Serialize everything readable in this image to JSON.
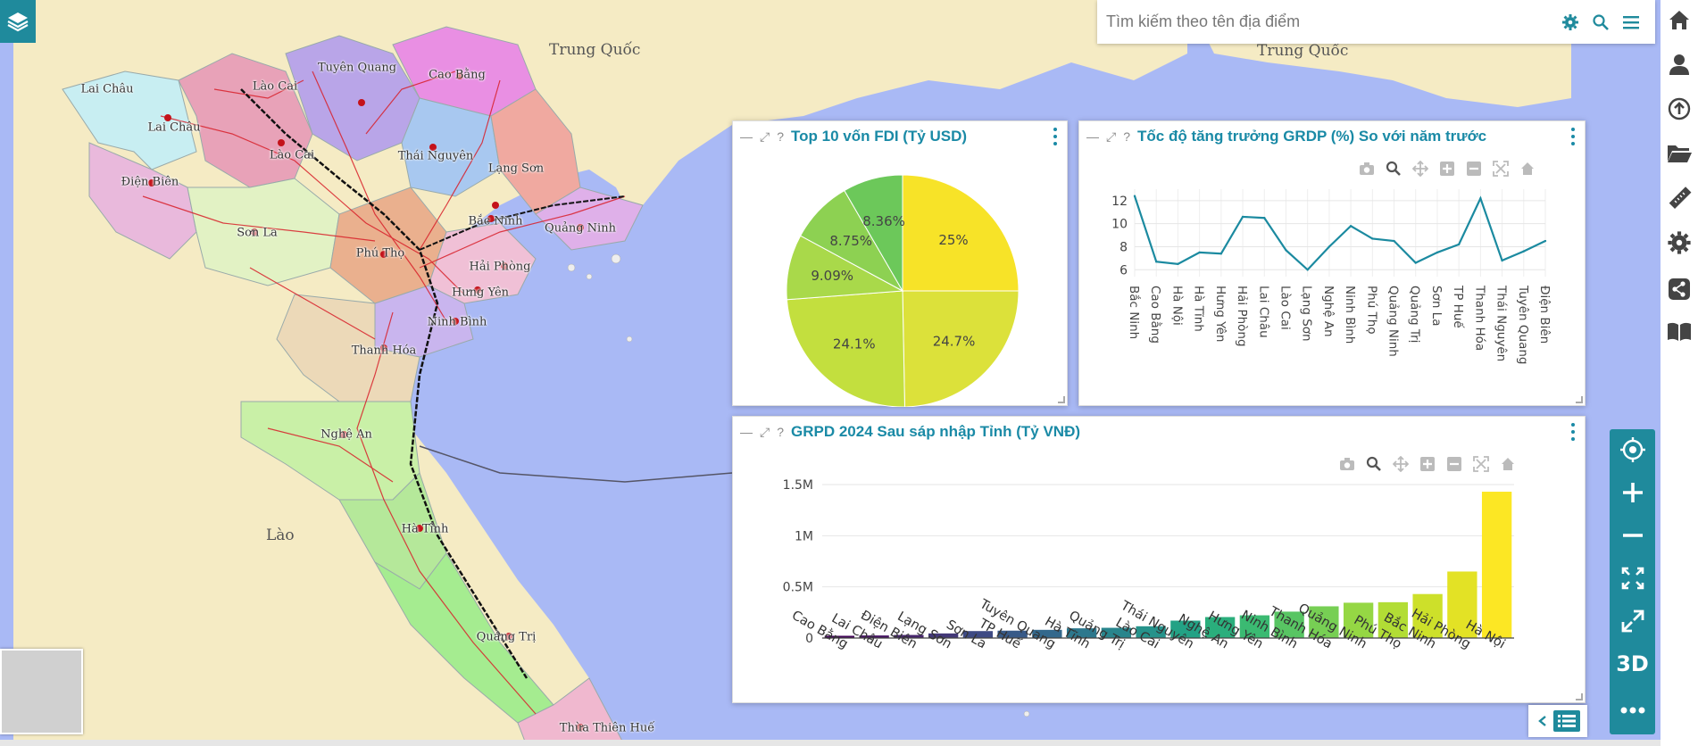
{
  "map": {
    "countries": [
      "Trung Quốc",
      "Trung Quốc",
      "Lào"
    ],
    "places": [
      "Lai Châu",
      "Lào Cai",
      "Tuyên Quang",
      "Cao Bằng",
      "Lai Châu",
      "Lào Cai",
      "Thái Nguyên",
      "Lạng Sơn",
      "Điện Biên",
      "Sơn La",
      "Phú Thọ",
      "Bắc Ninh",
      "Quảng Ninh",
      "Hải Phòng",
      "Hưng Yên",
      "Ninh Bình",
      "Thanh Hóa",
      "Nghệ An",
      "Hà Tĩnh",
      "Quảng Trị",
      "Thừa Thiên Huế"
    ]
  },
  "search": {
    "placeholder": "Tìm kiếm theo tên địa điểm"
  },
  "icons": {
    "layers": "layers-icon",
    "search_settings": "gear-icon",
    "search": "search-icon",
    "menu": "hamburger-icon",
    "toolbar": [
      "home-icon",
      "user-icon",
      "upload-icon",
      "folder-icon",
      "ruler-icon",
      "gear-icon",
      "share-icon",
      "book-icon"
    ],
    "zoom": [
      "locate-icon",
      "zoom-in-icon",
      "zoom-out-icon",
      "extent-icon",
      "fullscreen-icon"
    ]
  },
  "zoom_controls": {
    "three_d": "3D"
  },
  "colors": {
    "accent": "#1f8a9c",
    "title": "#1a8aa6",
    "line": "#1b8aa0"
  },
  "panels": {
    "pie": {
      "title": "Top 10 vốn FDI (Tỷ USD)"
    },
    "line": {
      "title": "Tốc độ tăng trưởng GRDP (%) So với năm trước"
    },
    "bar": {
      "title": "GRPD 2024 Sau sáp nhập Tỉnh (Tỷ VNĐ)"
    }
  },
  "chart_data": [
    {
      "type": "pie",
      "title": "Top 10 vốn FDI (Tỷ USD)",
      "slices": [
        {
          "value": 25,
          "label": "25%",
          "color": "#f7e328"
        },
        {
          "value": 24.7,
          "label": "24.7%",
          "color": "#dce13a"
        },
        {
          "value": 24.1,
          "label": "24.1%",
          "color": "#c3df3e"
        },
        {
          "value": 9.09,
          "label": "9.09%",
          "color": "#a9d94a"
        },
        {
          "value": 8.75,
          "label": "8.75%",
          "color": "#8dd152"
        },
        {
          "value": 8.36,
          "label": "8.36%",
          "color": "#6cc85a"
        }
      ]
    },
    {
      "type": "line",
      "title": "Tốc độ tăng trưởng GRDP (%) So với năm trước",
      "categories": [
        "Bắc Ninh",
        "Cao Bằng",
        "Hà Nội",
        "Hà Tĩnh",
        "Hưng Yên",
        "Hải Phòng",
        "Lai Châu",
        "Lào Cai",
        "Lạng Sơn",
        "Nghệ An",
        "Ninh Bình",
        "Phú Thọ",
        "Quảng Ninh",
        "Quảng Trị",
        "Sơn La",
        "TP Huế",
        "Thanh Hóa",
        "Thái Nguyên",
        "Tuyên Quang",
        "Điện Biên"
      ],
      "values": [
        12.4,
        6.7,
        6.5,
        7.5,
        7.4,
        10.6,
        10.5,
        7.7,
        6.0,
        8.0,
        9.8,
        8.7,
        8.5,
        6.6,
        7.5,
        8.2,
        12.2,
        6.8,
        7.6,
        8.5
      ],
      "yticks": [
        6,
        8,
        10,
        12
      ],
      "ylim": [
        5.4,
        13
      ],
      "grid": true
    },
    {
      "type": "bar",
      "title": "GRPD 2024 Sau sáp nhập Tỉnh (Tỷ VNĐ)",
      "categories": [
        "Cao Bằng",
        "Lai Châu",
        "Điện Biên",
        "Lạng Sơn",
        "Sơn La",
        "TP Huế",
        "Tuyên Quang",
        "Hà Tĩnh",
        "Quảng Trị",
        "Lào Cai",
        "Thái Nguyên",
        "Nghệ An",
        "Hưng Yên",
        "Ninh Bình",
        "Thanh Hóa",
        "Quảng Ninh",
        "Phú Thọ",
        "Bắc Ninh",
        "Hải Phòng",
        "Hà Nội"
      ],
      "values": [
        22000,
        25000,
        30000,
        45000,
        68000,
        72000,
        80000,
        95000,
        100000,
        115000,
        170000,
        205000,
        222000,
        258000,
        310000,
        345000,
        350000,
        430000,
        650000,
        1430000
      ],
      "colors": [
        "#44075a",
        "#471563",
        "#47266d",
        "#433877",
        "#3e4a84",
        "#385a88",
        "#33688c",
        "#2d788d",
        "#29858c",
        "#26938b",
        "#23a285",
        "#2aae7c",
        "#3bba72",
        "#58c563",
        "#77cf54",
        "#95d744",
        "#b2dd35",
        "#cde02a",
        "#e3e225",
        "#fce724"
      ],
      "yticks": [
        0,
        500000,
        1000000,
        1500000
      ],
      "ytick_labels": [
        "0",
        "0.5M",
        "1M",
        "1.5M"
      ],
      "ylim": [
        0,
        1500000
      ],
      "grid": true
    }
  ]
}
